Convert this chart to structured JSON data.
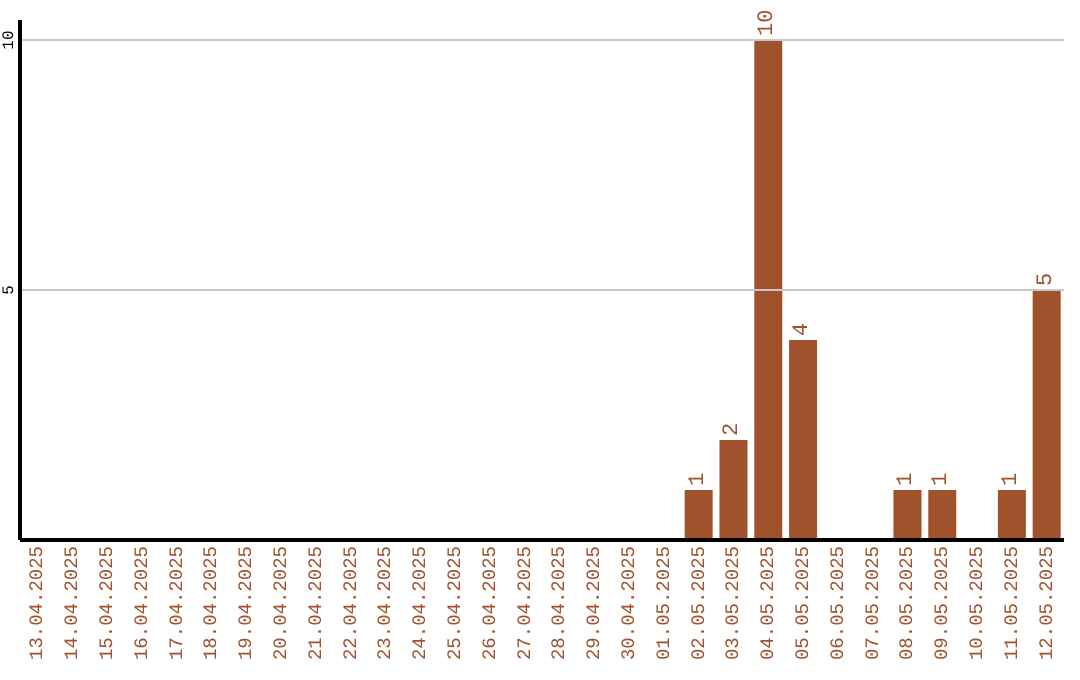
{
  "chart_data": {
    "type": "bar",
    "categories": [
      "13.04.2025",
      "14.04.2025",
      "15.04.2025",
      "16.04.2025",
      "17.04.2025",
      "18.04.2025",
      "19.04.2025",
      "20.04.2025",
      "21.04.2025",
      "22.04.2025",
      "23.04.2025",
      "24.04.2025",
      "25.04.2025",
      "26.04.2025",
      "27.04.2025",
      "28.04.2025",
      "29.04.2025",
      "30.04.2025",
      "01.05.2025",
      "02.05.2025",
      "03.05.2025",
      "04.05.2025",
      "05.05.2025",
      "06.05.2025",
      "07.05.2025",
      "08.05.2025",
      "09.05.2025",
      "10.05.2025",
      "11.05.2025",
      "12.05.2025"
    ],
    "values": [
      0,
      0,
      0,
      0,
      0,
      0,
      0,
      0,
      0,
      0,
      0,
      0,
      0,
      0,
      0,
      0,
      0,
      0,
      0,
      1,
      2,
      10,
      4,
      0,
      0,
      1,
      1,
      0,
      1,
      5
    ],
    "value_labels": [
      null,
      null,
      null,
      null,
      null,
      null,
      null,
      null,
      null,
      null,
      null,
      null,
      null,
      null,
      null,
      null,
      null,
      null,
      null,
      "1",
      "2",
      "10",
      "4",
      null,
      null,
      "1",
      "1",
      null,
      "1",
      "5"
    ],
    "color": "#a0522d",
    "ylim": [
      0,
      10.4
    ],
    "yticks": [
      5,
      10
    ],
    "grid": "y",
    "legend": false
  }
}
